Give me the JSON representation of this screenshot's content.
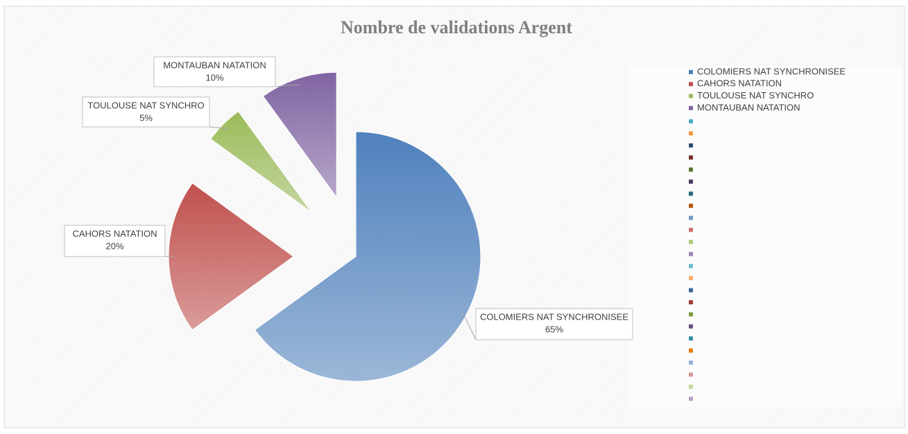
{
  "chart_data": {
    "type": "pie",
    "title": "Nombre de validations Argent",
    "categories": [
      "COLOMIERS NAT SYNCHRONISEE",
      "CAHORS NATATION",
      "TOULOUSE NAT SYNCHRO",
      "MONTAUBAN NATATION",
      null,
      null,
      null,
      null,
      null,
      null,
      null,
      null,
      null,
      null,
      null,
      null,
      null,
      null,
      null,
      null,
      null,
      null,
      null,
      null,
      null,
      null,
      null,
      null
    ],
    "values": [
      65,
      20,
      5,
      10,
      null,
      null,
      null,
      null,
      null,
      null,
      null,
      null,
      null,
      null,
      null,
      null,
      null,
      null,
      null,
      null,
      null,
      null,
      null,
      null,
      null,
      null,
      null,
      null
    ],
    "value_labels": [
      "65%",
      "20%",
      "5%",
      "10%",
      null,
      null,
      null,
      null,
      null,
      null,
      null,
      null,
      null,
      null,
      null,
      null,
      null,
      null,
      null,
      null,
      null,
      null,
      null,
      null,
      null,
      null,
      null,
      null
    ],
    "colors": [
      "#4f81bd",
      "#c0504d",
      "#9bbb59",
      "#8064a2",
      "#4bacc6",
      "#f79646",
      "#2c4d75",
      "#772c2a",
      "#5f7530",
      "#4d3b62",
      "#276a7c",
      "#b65708",
      "#729aca",
      "#cd7371",
      "#afc97a",
      "#9983b5",
      "#6fbdd1",
      "#f9ab6b",
      "#3a679c",
      "#9f3b38",
      "#7e9c40",
      "#664f83",
      "#358ea6",
      "#e8770e",
      "#95b3d7",
      "#d99694",
      "#c3d69b",
      "#b3a2c7"
    ],
    "legend": "right"
  }
}
